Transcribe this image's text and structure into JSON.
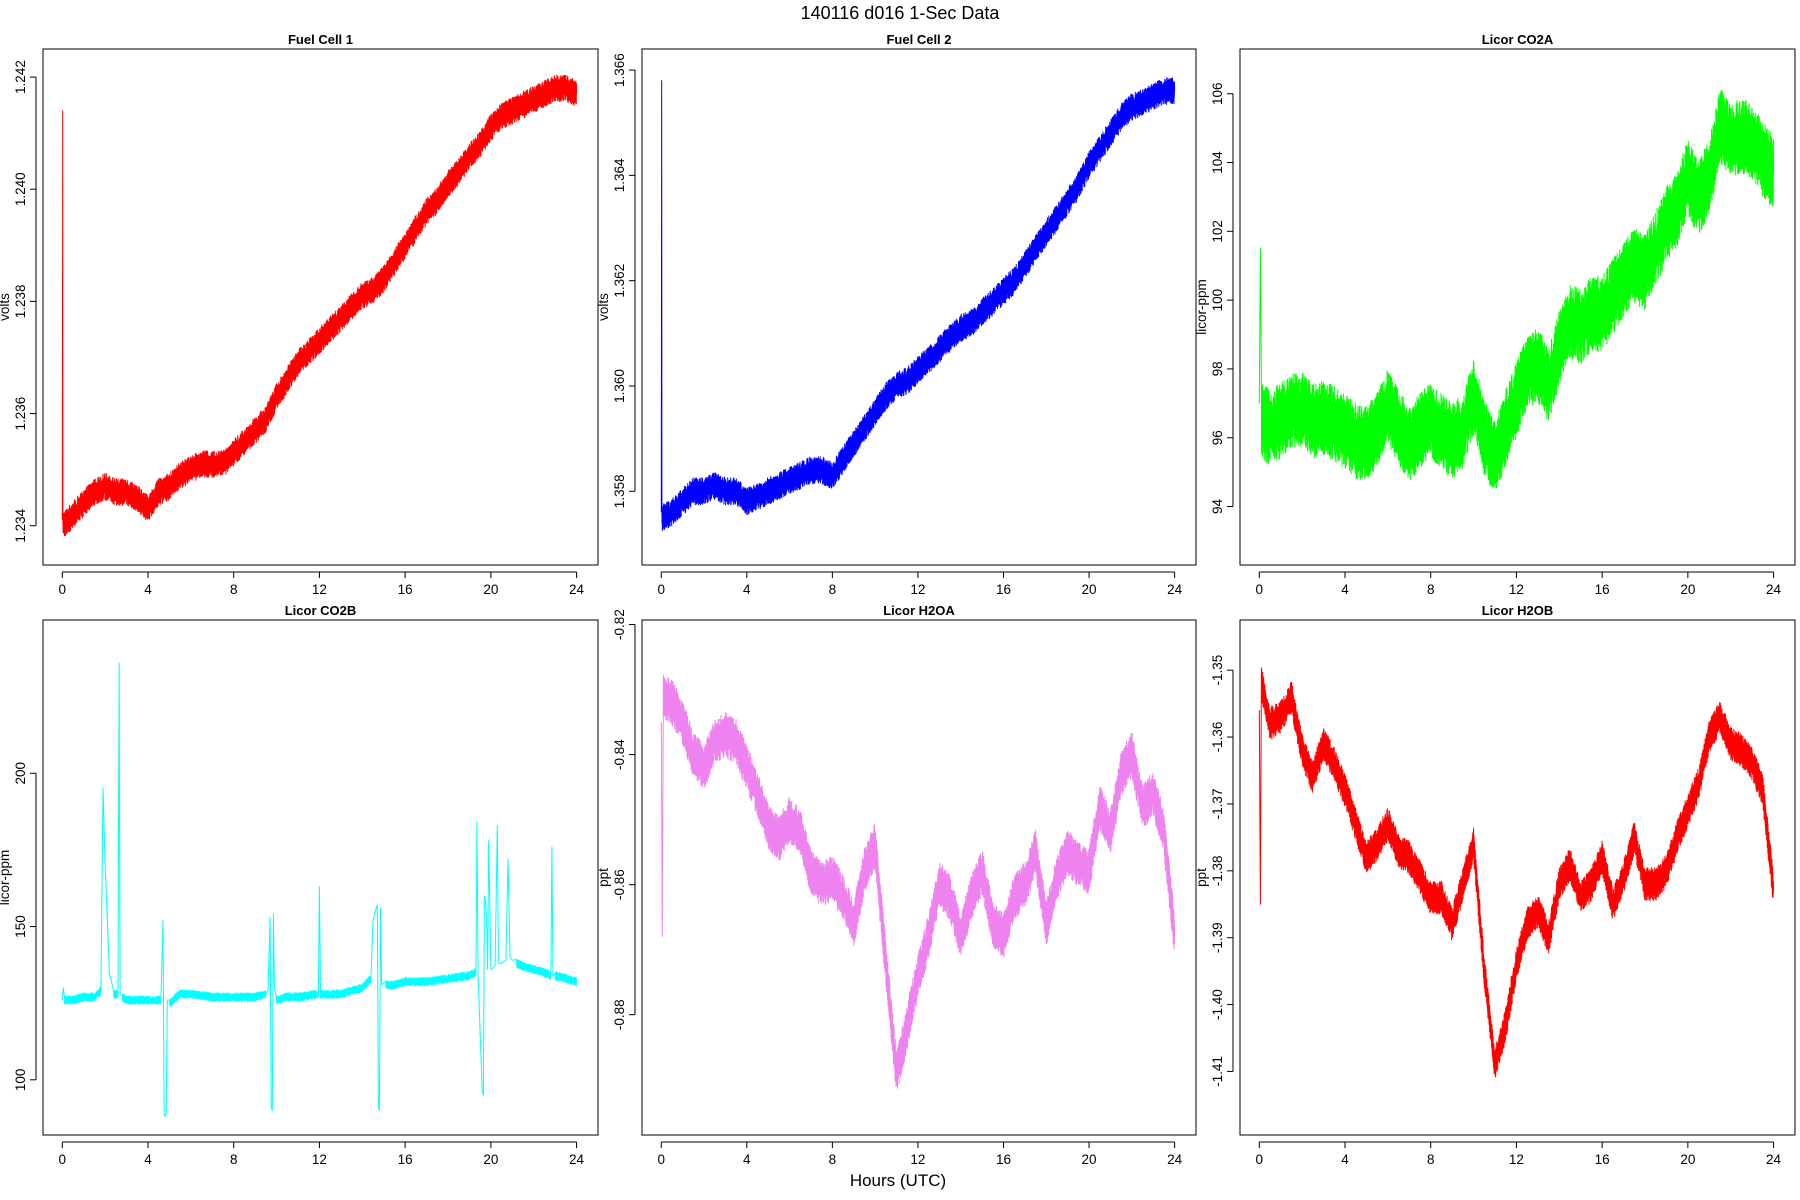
{
  "figure": {
    "title": "140116   d016   1-Sec Data",
    "xlabel": "Hours (UTC)"
  },
  "chart_data": [
    {
      "type": "line",
      "title": "Fuel Cell 1",
      "ylabel": "volts",
      "color": "#ff0000",
      "xlim": [
        -0.9,
        25.0
      ],
      "ylim": [
        1.2333,
        1.2425
      ],
      "xticks": [
        0,
        4,
        8,
        12,
        16,
        20,
        24
      ],
      "yticks": [
        1.234,
        1.236,
        1.238,
        1.24,
        1.242
      ],
      "ytick_labels": [
        "1.234",
        "1.236",
        "1.238",
        "1.240",
        "1.242"
      ],
      "noise": 0.00024,
      "series": [
        {
          "x": [
            0,
            0.02,
            0.03,
            0.5,
            1,
            1.5,
            2,
            2.5,
            3,
            3.5,
            4,
            4.5,
            5,
            5.5,
            6,
            6.5,
            7,
            7.5,
            8,
            8.5,
            9,
            9.5,
            10,
            10.5,
            11,
            11.5,
            12,
            12.5,
            13,
            13.5,
            14,
            14.5,
            15,
            15.5,
            16,
            16.5,
            17,
            17.5,
            18,
            18.5,
            19,
            19.5,
            20,
            20.5,
            21,
            21.5,
            22,
            22.5,
            23,
            23.5,
            24
          ],
          "y": [
            1.2341,
            1.2414,
            1.234,
            1.2342,
            1.2344,
            1.2346,
            1.2347,
            1.2346,
            1.2346,
            1.2345,
            1.2343,
            1.2346,
            1.2347,
            1.2349,
            1.235,
            1.2351,
            1.2351,
            1.2351,
            1.2353,
            1.2355,
            1.2357,
            1.2359,
            1.2363,
            1.2366,
            1.2369,
            1.2371,
            1.2373,
            1.2375,
            1.2377,
            1.2379,
            1.2381,
            1.2382,
            1.2384,
            1.2387,
            1.239,
            1.2393,
            1.2396,
            1.2398,
            1.2401,
            1.2403,
            1.2406,
            1.2408,
            1.2411,
            1.2413,
            1.2414,
            1.2415,
            1.2416,
            1.2417,
            1.2418,
            1.2418,
            1.2417
          ]
        }
      ]
    },
    {
      "type": "line",
      "title": "Fuel Cell 2",
      "ylabel": "volts",
      "color": "#0000ff",
      "xlim": [
        -0.9,
        25.0
      ],
      "ylim": [
        1.3566,
        1.3664
      ],
      "xticks": [
        0,
        4,
        8,
        12,
        16,
        20,
        24
      ],
      "yticks": [
        1.358,
        1.36,
        1.362,
        1.364,
        1.366
      ],
      "ytick_labels": [
        "1.358",
        "1.360",
        "1.362",
        "1.364",
        "1.366"
      ],
      "noise": 0.00026,
      "series": [
        {
          "x": [
            0,
            0.02,
            0.03,
            0.5,
            1,
            1.5,
            2,
            2.5,
            3,
            3.5,
            4,
            4.5,
            5,
            5.5,
            6,
            6.5,
            7,
            7.5,
            8,
            8.5,
            9,
            9.5,
            10,
            10.5,
            11,
            11.5,
            12,
            12.5,
            13,
            13.5,
            14,
            14.5,
            15,
            15.5,
            16,
            16.5,
            17,
            17.5,
            18,
            18.5,
            19,
            19.5,
            20,
            20.5,
            21,
            21.5,
            22,
            22.5,
            23,
            23.5,
            24
          ],
          "y": [
            1.3576,
            1.3658,
            1.3575,
            1.3576,
            1.3578,
            1.358,
            1.358,
            1.3581,
            1.358,
            1.358,
            1.3578,
            1.3579,
            1.358,
            1.3581,
            1.3582,
            1.3583,
            1.3584,
            1.3584,
            1.3583,
            1.3586,
            1.3589,
            1.3592,
            1.3595,
            1.3598,
            1.36,
            1.3601,
            1.3603,
            1.3605,
            1.3607,
            1.3609,
            1.3611,
            1.3612,
            1.3614,
            1.3616,
            1.3618,
            1.362,
            1.3623,
            1.3626,
            1.3629,
            1.3632,
            1.3635,
            1.3638,
            1.3642,
            1.3645,
            1.3648,
            1.3651,
            1.3653,
            1.3654,
            1.3655,
            1.3656,
            1.3656
          ]
        }
      ]
    },
    {
      "type": "line",
      "title": "Licor CO2A",
      "ylabel": "licor-ppm",
      "color": "#00ff00",
      "xlim": [
        -0.9,
        25.0
      ],
      "ylim": [
        92.3,
        107.3
      ],
      "xticks": [
        0,
        4,
        8,
        12,
        16,
        20,
        24
      ],
      "yticks": [
        94,
        96,
        98,
        100,
        102,
        104,
        106
      ],
      "ytick_labels": [
        "94",
        "96",
        "98",
        "100",
        "102",
        "104",
        "106"
      ],
      "noise": 1.1,
      "series": [
        {
          "x": [
            0,
            0.05,
            0.1,
            0.5,
            1,
            1.5,
            2,
            2.5,
            3,
            3.5,
            4,
            4.5,
            5,
            5.5,
            6,
            6.5,
            7,
            7.5,
            8,
            8.5,
            9,
            9.5,
            10,
            10.5,
            11,
            11.5,
            12,
            12.5,
            13,
            13.5,
            14,
            14.5,
            15,
            15.5,
            16,
            16.5,
            17,
            17.5,
            18,
            18.5,
            19,
            19.5,
            20,
            20.5,
            21,
            21.5,
            22,
            22.5,
            23,
            23.5,
            24
          ],
          "y": [
            97.0,
            101.5,
            96.5,
            96.3,
            96.5,
            96.8,
            96.8,
            96.5,
            96.6,
            96.4,
            96.2,
            95.9,
            95.8,
            96.2,
            96.9,
            96.3,
            95.8,
            96.2,
            96.5,
            96.2,
            95.9,
            96.2,
            97.2,
            96.0,
            95.4,
            96.3,
            97.1,
            97.9,
            98.1,
            97.5,
            98.6,
            99.4,
            99.2,
            99.6,
            99.6,
            100.1,
            100.6,
            101.0,
            100.8,
            101.5,
            102.2,
            102.6,
            103.6,
            102.9,
            103.6,
            105.1,
            104.6,
            104.8,
            104.6,
            104.1,
            103.7
          ]
        }
      ]
    },
    {
      "type": "line",
      "title": "Licor CO2B",
      "ylabel": "licor-ppm",
      "color": "#00ffff",
      "xlim": [
        -0.9,
        25.0
      ],
      "ylim": [
        82,
        250
      ],
      "xticks": [
        0,
        4,
        8,
        12,
        16,
        20,
        24
      ],
      "yticks": [
        100,
        150,
        200
      ],
      "ytick_labels": [
        "100",
        "150",
        "200"
      ],
      "noise": 1.4,
      "series": [
        {
          "x": [
            0,
            0.05,
            0.1,
            0.5,
            1,
            1.5,
            1.8,
            1.9,
            2.0,
            2.2,
            2.4,
            2.6,
            2.65,
            2.7,
            2.8,
            3,
            4,
            4.6,
            4.7,
            4.75,
            4.8,
            4.85,
            4.9,
            5,
            5.5,
            6,
            7,
            8,
            9,
            9.5,
            9.6,
            9.7,
            9.75,
            9.8,
            9.85,
            9.9,
            10.0,
            10.5,
            11,
            11.95,
            12.0,
            12.05,
            12.5,
            13,
            13.5,
            14,
            14.4,
            14.5,
            14.6,
            14.7,
            14.75,
            14.8,
            14.85,
            14.9,
            15.1,
            15.5,
            16,
            17,
            18,
            19,
            19.3,
            19.35,
            19.4,
            19.6,
            19.65,
            19.7,
            19.75,
            19.8,
            19.85,
            19.9,
            20.0,
            20.2,
            20.3,
            20.35,
            20.5,
            20.7,
            20.8,
            20.9,
            21.0,
            21.2,
            21.5,
            22,
            22.5,
            22.8,
            22.85,
            22.9,
            23,
            23.5,
            24
          ],
          "y": [
            126,
            130,
            126,
            126,
            127,
            127,
            129,
            195,
            170,
            135,
            128,
            128,
            236,
            128,
            127,
            126,
            126,
            126,
            152,
            89,
            88,
            89,
            126,
            125,
            128,
            128,
            127,
            127,
            127,
            128,
            129,
            153,
            91,
            90,
            154,
            130,
            126,
            127,
            127,
            128,
            163,
            128,
            128,
            128,
            129,
            130,
            133,
            152,
            155,
            157,
            91,
            90,
            156,
            131,
            131,
            131,
            132,
            132,
            133,
            134,
            135,
            184,
            135,
            96,
            95,
            160,
            158,
            152,
            136,
            178,
            136,
            137,
            183,
            138,
            138,
            139,
            172,
            140,
            139,
            138,
            137,
            136,
            135,
            134,
            176,
            134,
            134,
            133,
            132
          ]
        }
      ]
    },
    {
      "type": "line",
      "title": "Licor H2OA",
      "ylabel": "ppt",
      "color": "#ee82ee",
      "xlim": [
        -0.9,
        25.0
      ],
      "ylim": [
        -0.8985,
        -0.8193
      ],
      "xticks": [
        0,
        4,
        8,
        12,
        16,
        20,
        24
      ],
      "yticks": [
        -0.88,
        -0.86,
        -0.84,
        -0.82
      ],
      "ytick_labels": [
        "-0.88",
        "-0.86",
        "-0.84",
        "-0.82"
      ],
      "noise": 0.0035,
      "series": [
        {
          "x": [
            0,
            0.05,
            0.1,
            0.5,
            1,
            1.5,
            2,
            2.5,
            3,
            3.5,
            4,
            4.5,
            5,
            5.5,
            6,
            6.5,
            7,
            7.5,
            8,
            8.5,
            9,
            9.5,
            10,
            10.5,
            11,
            11.5,
            12,
            12.5,
            13,
            13.5,
            14,
            14.5,
            15,
            15.5,
            16,
            16.5,
            17,
            17.5,
            18,
            18.5,
            19,
            19.5,
            20,
            20.5,
            21,
            21.5,
            22,
            22.5,
            23,
            23.5,
            24
          ],
          "y": [
            -0.835,
            -0.868,
            -0.831,
            -0.832,
            -0.835,
            -0.84,
            -0.842,
            -0.838,
            -0.837,
            -0.838,
            -0.842,
            -0.846,
            -0.851,
            -0.853,
            -0.85,
            -0.852,
            -0.858,
            -0.86,
            -0.859,
            -0.862,
            -0.866,
            -0.858,
            -0.854,
            -0.872,
            -0.889,
            -0.882,
            -0.874,
            -0.868,
            -0.86,
            -0.862,
            -0.868,
            -0.862,
            -0.858,
            -0.866,
            -0.868,
            -0.862,
            -0.86,
            -0.855,
            -0.866,
            -0.859,
            -0.855,
            -0.857,
            -0.858,
            -0.848,
            -0.852,
            -0.843,
            -0.84,
            -0.848,
            -0.846,
            -0.852,
            -0.868
          ]
        }
      ]
    },
    {
      "type": "line",
      "title": "Licor H2OB",
      "ylabel": "ppt",
      "color": "#ff0000",
      "xlim": [
        -0.9,
        25.0
      ],
      "ylim": [
        -1.4195,
        -1.3425
      ],
      "xticks": [
        0,
        4,
        8,
        12,
        16,
        20,
        24
      ],
      "yticks": [
        -1.41,
        -1.4,
        -1.39,
        -1.38,
        -1.37,
        -1.36,
        -1.35
      ],
      "ytick_labels": [
        "-1.41",
        "-1.40",
        "-1.39",
        "-1.38",
        "-1.37",
        "-1.36",
        "-1.35"
      ],
      "noise": 0.0025,
      "series": [
        {
          "x": [
            0,
            0.05,
            0.1,
            0.5,
            1,
            1.5,
            2,
            2.5,
            3,
            3.5,
            4,
            4.5,
            5,
            5.5,
            6,
            6.5,
            7,
            7.5,
            8,
            8.5,
            9,
            9.5,
            10,
            10.5,
            11,
            11.5,
            12,
            12.5,
            13,
            13.5,
            14,
            14.5,
            15,
            15.5,
            16,
            16.5,
            17,
            17.5,
            18,
            18.5,
            19,
            19.5,
            20,
            20.5,
            21,
            21.5,
            22,
            22.5,
            23,
            23.5,
            24
          ],
          "y": [
            -1.356,
            -1.385,
            -1.352,
            -1.358,
            -1.357,
            -1.354,
            -1.362,
            -1.366,
            -1.361,
            -1.364,
            -1.368,
            -1.373,
            -1.378,
            -1.376,
            -1.373,
            -1.377,
            -1.378,
            -1.381,
            -1.384,
            -1.384,
            -1.388,
            -1.382,
            -1.376,
            -1.395,
            -1.409,
            -1.403,
            -1.394,
            -1.388,
            -1.386,
            -1.39,
            -1.382,
            -1.379,
            -1.384,
            -1.382,
            -1.378,
            -1.385,
            -1.381,
            -1.375,
            -1.382,
            -1.382,
            -1.38,
            -1.375,
            -1.371,
            -1.367,
            -1.36,
            -1.357,
            -1.361,
            -1.362,
            -1.364,
            -1.368,
            -1.383
          ]
        }
      ]
    }
  ]
}
